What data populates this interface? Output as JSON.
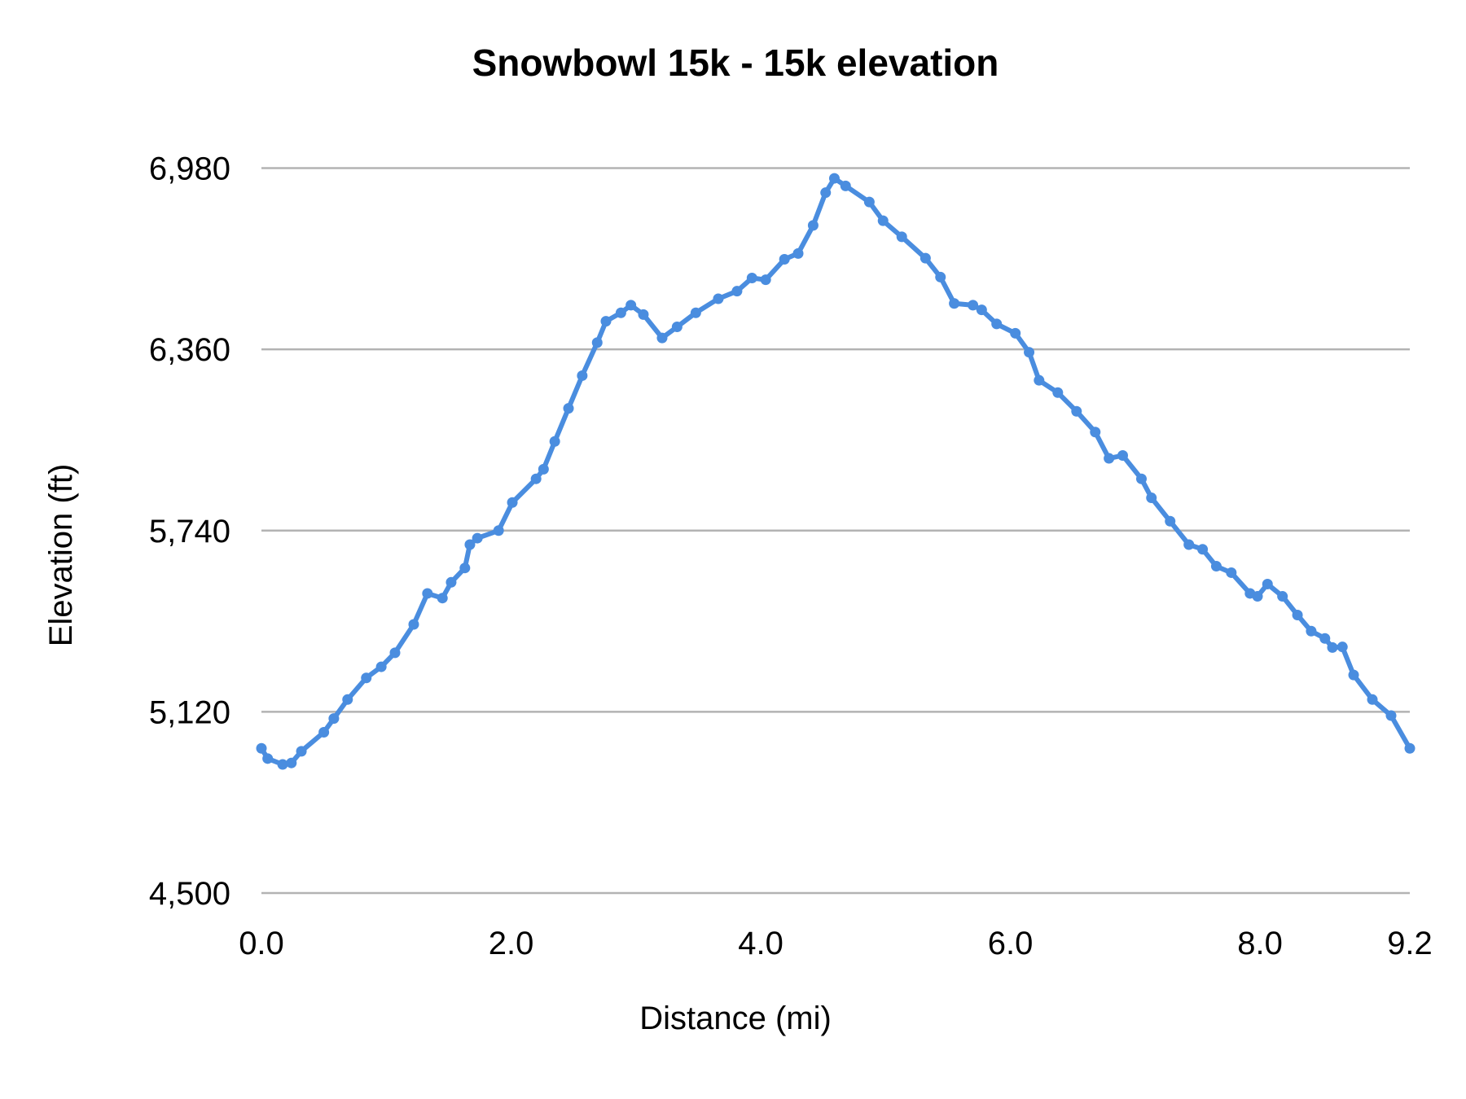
{
  "chart_data": {
    "type": "line",
    "title": "Snowbowl 15k - 15k elevation",
    "xlabel": "Distance (mi)",
    "ylabel": "Elevation (ft)",
    "xlim": [
      0,
      9.2
    ],
    "ylim": [
      4500,
      6980
    ],
    "x_ticks": [
      "0.0",
      "2.0",
      "4.0",
      "6.0",
      "8.0",
      "9.2"
    ],
    "x_tick_values": [
      0,
      2,
      4,
      6,
      8,
      9.2
    ],
    "y_ticks": [
      "4,500",
      "5,120",
      "5,740",
      "6,360",
      "6,980"
    ],
    "y_tick_values": [
      4500,
      5120,
      5740,
      6360,
      6980
    ],
    "grid": "horizontal",
    "legend": "none",
    "color": "#4a8ddf",
    "markers": true,
    "series": [
      {
        "x": [
          0,
          0.05,
          0.17,
          0.24,
          0.32,
          0.5,
          0.58,
          0.69,
          0.84,
          0.96,
          1.07,
          1.22,
          1.33,
          1.45,
          1.52,
          1.63,
          1.67,
          1.73,
          1.9,
          2.01,
          2.2,
          2.26,
          2.35,
          2.46,
          2.57,
          2.69,
          2.76,
          2.88,
          2.96,
          3.06,
          3.21,
          3.33,
          3.48,
          3.66,
          3.81,
          3.93,
          4.04,
          4.19,
          4.3,
          4.42,
          4.52,
          4.59,
          4.68,
          4.87,
          4.98,
          5.13,
          5.32,
          5.44,
          5.55,
          5.7,
          5.77,
          5.89,
          6.04,
          6.15,
          6.23,
          6.38,
          6.53,
          6.68,
          6.79,
          6.9,
          7.05,
          7.13,
          7.28,
          7.43,
          7.54,
          7.65,
          7.77,
          7.92,
          7.98,
          8.06,
          8.18,
          8.3,
          8.41,
          8.52,
          8.58,
          8.66,
          8.75,
          8.9,
          9.05,
          9.2
        ],
        "y": [
          4995,
          4960,
          4940,
          4945,
          4985,
          5050,
          5097,
          5162,
          5236,
          5274,
          5322,
          5419,
          5525,
          5509,
          5563,
          5612,
          5692,
          5714,
          5740,
          5836,
          5917,
          5950,
          6045,
          6158,
          6270,
          6383,
          6456,
          6485,
          6511,
          6479,
          6399,
          6437,
          6485,
          6533,
          6559,
          6604,
          6598,
          6668,
          6688,
          6784,
          6896,
          6945,
          6919,
          6864,
          6800,
          6745,
          6672,
          6607,
          6517,
          6511,
          6495,
          6447,
          6415,
          6350,
          6254,
          6212,
          6148,
          6077,
          5987,
          5997,
          5917,
          5852,
          5772,
          5692,
          5676,
          5618,
          5596,
          5525,
          5515,
          5557,
          5515,
          5451,
          5396,
          5371,
          5340,
          5342,
          5246,
          5162,
          5107,
          4995
        ]
      }
    ]
  }
}
